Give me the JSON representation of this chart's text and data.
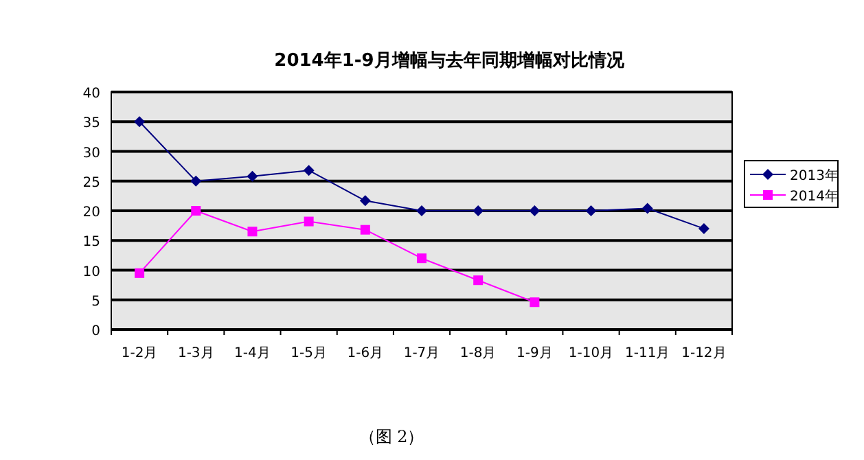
{
  "chart_data": {
    "type": "line",
    "title": "2014年1-9月增幅与去年同期增幅对比情况",
    "categories": [
      "1-2月",
      "1-3月",
      "1-4月",
      "1-5月",
      "1-6月",
      "1-7月",
      "1-8月",
      "1-9月",
      "1-10月",
      "1-11月",
      "1-12月"
    ],
    "series": [
      {
        "name": "2013年",
        "color": "#000080",
        "marker": "diamond",
        "values": [
          35,
          25,
          25.8,
          26.8,
          21.7,
          20,
          20,
          20,
          20,
          20.4,
          17
        ]
      },
      {
        "name": "2014年",
        "color": "#ff00ff",
        "marker": "square",
        "values": [
          9.5,
          20,
          16.5,
          18.2,
          16.8,
          12,
          8.3,
          4.6,
          null,
          null,
          null
        ]
      }
    ],
    "ylim": [
      0,
      40
    ],
    "yticks": [
      0,
      5,
      10,
      15,
      20,
      25,
      30,
      35,
      40
    ],
    "grid": "y",
    "legend": "right",
    "line_style": "solid",
    "annotations": [
      "（图 2）"
    ]
  }
}
